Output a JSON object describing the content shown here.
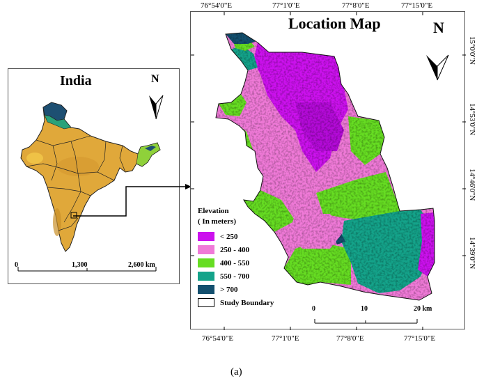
{
  "inset": {
    "title": "India",
    "north": "N",
    "scale": [
      "0",
      "1,300",
      "2,600 km"
    ]
  },
  "main": {
    "title": "Location Map",
    "north": "N",
    "top_ticks": [
      "76°54'0\"E",
      "77°1'0\"E",
      "77°8'0\"E",
      "77°15'0\"E"
    ],
    "bottom_ticks": [
      "76°54'0\"E",
      "77°1'0\"E",
      "77°8'0\"E",
      "77°15'0\"E"
    ],
    "right_ticks": [
      "15°0'0\"N",
      "14°53'0\"N",
      "14°46'0\"N",
      "14°39'0\"N"
    ],
    "scale": [
      "0",
      "10",
      "20 km"
    ]
  },
  "legend": {
    "title_line1": "Elevation",
    "title_line2": "( In meters)",
    "items": [
      {
        "label": "< 250",
        "color": "#cc11ee"
      },
      {
        "label": "250 - 400",
        "color": "#f07ad8"
      },
      {
        "label": "400 - 550",
        "color": "#66dd22"
      },
      {
        "label": "550 - 700",
        "color": "#14a38a"
      },
      {
        "label": "> 700",
        "color": "#134f6e"
      },
      {
        "label": "Study Boundary",
        "color": "#ffffff"
      }
    ]
  },
  "caption": "(a)"
}
